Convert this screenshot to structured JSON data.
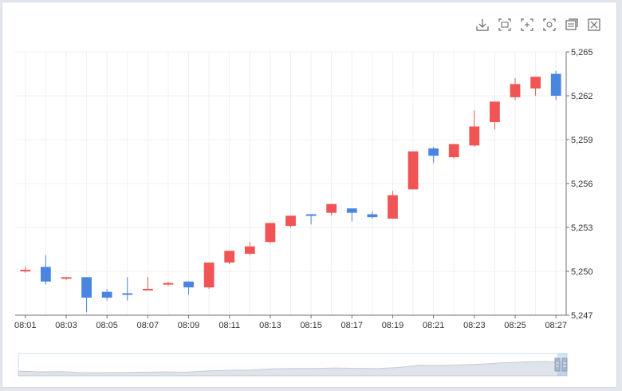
{
  "toolbar": {
    "icons": [
      "download-icon",
      "zoom-select-icon",
      "zoom-reset-icon",
      "restore-icon",
      "data-view-icon",
      "clear-icon"
    ]
  },
  "colors": {
    "up": "#f05454",
    "down": "#4a86e0",
    "grid": "#eef0f3",
    "axis": "#6e7079"
  },
  "chart_data": {
    "type": "candlestick",
    "title": "",
    "xlabel": "",
    "ylabel": "",
    "ylim": [
      5247,
      5265
    ],
    "y_ticks": [
      "5,247",
      "5,250",
      "5,253",
      "5,256",
      "5,259",
      "5,262",
      "5,265"
    ],
    "x_tick_labels": [
      "08:01",
      "08:03",
      "08:05",
      "08:07",
      "08:09",
      "08:11",
      "08:13",
      "08:15",
      "08:17",
      "08:19",
      "08:21",
      "08:23",
      "08:25",
      "08:27"
    ],
    "grid": true,
    "candles": [
      {
        "time": "08:01",
        "open": 5250.0,
        "close": 5250.1,
        "high": 5250.3,
        "low": 5249.9
      },
      {
        "time": "08:02",
        "open": 5250.3,
        "close": 5249.3,
        "high": 5251.1,
        "low": 5249.1
      },
      {
        "time": "08:03",
        "open": 5249.5,
        "close": 5249.6,
        "high": 5249.6,
        "low": 5249.4
      },
      {
        "time": "08:04",
        "open": 5249.6,
        "close": 5248.2,
        "high": 5249.6,
        "low": 5247.2
      },
      {
        "time": "08:05",
        "open": 5248.6,
        "close": 5248.2,
        "high": 5248.8,
        "low": 5248.0
      },
      {
        "time": "08:06",
        "open": 5248.5,
        "close": 5248.4,
        "high": 5249.6,
        "low": 5248.0
      },
      {
        "time": "08:07",
        "open": 5248.7,
        "close": 5248.8,
        "high": 5249.6,
        "low": 5248.7
      },
      {
        "time": "08:08",
        "open": 5249.1,
        "close": 5249.2,
        "high": 5249.3,
        "low": 5249.0
      },
      {
        "time": "08:09",
        "open": 5249.3,
        "close": 5248.9,
        "high": 5249.3,
        "low": 5248.4
      },
      {
        "time": "08:10",
        "open": 5248.9,
        "close": 5250.6,
        "high": 5250.6,
        "low": 5248.8
      },
      {
        "time": "08:11",
        "open": 5250.6,
        "close": 5251.4,
        "high": 5251.4,
        "low": 5250.5
      },
      {
        "time": "08:12",
        "open": 5251.2,
        "close": 5251.7,
        "high": 5252.0,
        "low": 5251.1
      },
      {
        "time": "08:13",
        "open": 5252.0,
        "close": 5253.3,
        "high": 5253.3,
        "low": 5251.9
      },
      {
        "time": "08:14",
        "open": 5253.1,
        "close": 5253.8,
        "high": 5253.8,
        "low": 5253.0
      },
      {
        "time": "08:15",
        "open": 5253.9,
        "close": 5253.8,
        "high": 5253.9,
        "low": 5253.2
      },
      {
        "time": "08:16",
        "open": 5254.0,
        "close": 5254.6,
        "high": 5254.6,
        "low": 5253.8
      },
      {
        "time": "08:17",
        "open": 5254.3,
        "close": 5254.0,
        "high": 5254.3,
        "low": 5253.4
      },
      {
        "time": "08:18",
        "open": 5253.9,
        "close": 5253.7,
        "high": 5254.1,
        "low": 5253.6
      },
      {
        "time": "08:19",
        "open": 5253.6,
        "close": 5255.2,
        "high": 5255.5,
        "low": 5253.6
      },
      {
        "time": "08:20",
        "open": 5255.6,
        "close": 5258.2,
        "high": 5258.2,
        "low": 5255.6
      },
      {
        "time": "08:21",
        "open": 5258.4,
        "close": 5257.9,
        "high": 5258.5,
        "low": 5257.4
      },
      {
        "time": "08:22",
        "open": 5257.8,
        "close": 5258.7,
        "high": 5258.7,
        "low": 5257.7
      },
      {
        "time": "08:23",
        "open": 5258.6,
        "close": 5259.9,
        "high": 5261.0,
        "low": 5258.5
      },
      {
        "time": "08:24",
        "open": 5260.2,
        "close": 5261.6,
        "high": 5261.6,
        "low": 5259.7
      },
      {
        "time": "08:25",
        "open": 5261.9,
        "close": 5262.8,
        "high": 5263.2,
        "low": 5261.7
      },
      {
        "time": "08:26",
        "open": 5262.5,
        "close": 5263.3,
        "high": 5263.3,
        "low": 5262.0
      },
      {
        "time": "08:27",
        "open": 5263.5,
        "close": 5262.0,
        "high": 5263.7,
        "low": 5261.7
      }
    ],
    "slider": {
      "start_percent": 0,
      "end_percent": 100
    }
  }
}
